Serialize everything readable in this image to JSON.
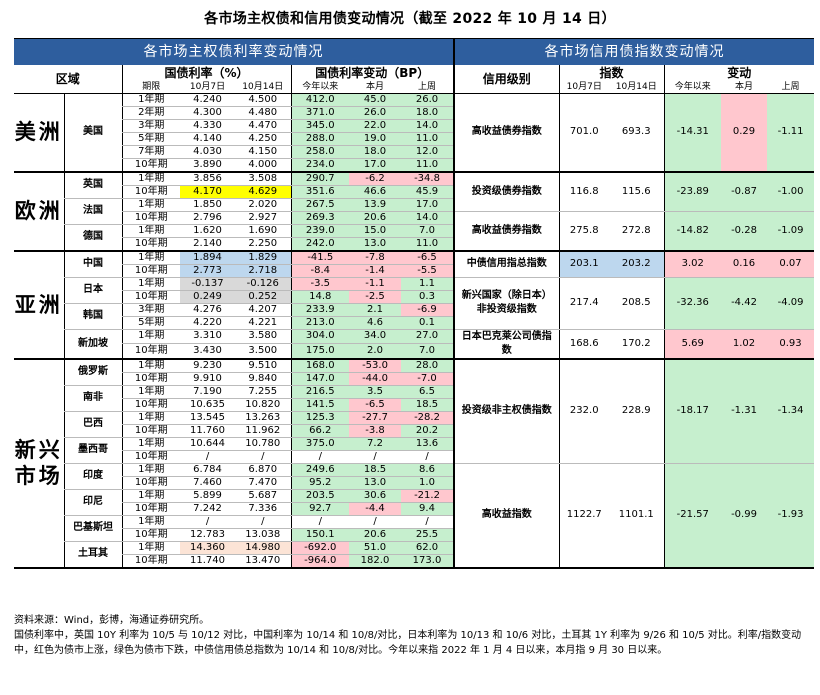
{
  "title": "各市场主权债和信用债变动情况（截至 2022 年 10 月 14 日）",
  "left_header": "各市场主权债利率变动情况",
  "right_header": "各市场信用债指数变动情况",
  "cols": {
    "region": "区域",
    "yield": "国债利率（%）",
    "yield_change": "国债利率变动（BP）",
    "tenor": "期限",
    "d1": "10月7日",
    "d2": "10月14日",
    "ytd": "今年以来",
    "mtd": "本月",
    "wow": "上周",
    "credit_level": "信用级别",
    "index": "指数",
    "change": "变动"
  },
  "regions": {
    "americas": "美洲",
    "europe": "欧洲",
    "asia": "亚洲",
    "emerging": "新兴市场"
  },
  "countries": {
    "us": "美国",
    "uk": "英国",
    "fr": "法国",
    "de": "德国",
    "cn": "中国",
    "jp": "日本",
    "kr": "韩国",
    "sg": "新加坡",
    "ru": "俄罗斯",
    "za": "南非",
    "br": "巴西",
    "mx": "墨西哥",
    "in": "印度",
    "id": "印尼",
    "pk": "巴基斯坦",
    "tr": "土耳其"
  },
  "tenors": [
    "1年期",
    "2年期",
    "3年期",
    "5年期",
    "7年期",
    "10年期"
  ],
  "sov": [
    [
      "1年期",
      "4.240",
      "4.500",
      "412.0",
      "45.0",
      "26.0"
    ],
    [
      "2年期",
      "4.300",
      "4.480",
      "371.0",
      "26.0",
      "18.0"
    ],
    [
      "3年期",
      "4.330",
      "4.470",
      "345.0",
      "22.0",
      "14.0"
    ],
    [
      "5年期",
      "4.140",
      "4.250",
      "288.0",
      "19.0",
      "11.0"
    ],
    [
      "7年期",
      "4.030",
      "4.150",
      "258.0",
      "18.0",
      "12.0"
    ],
    [
      "10年期",
      "3.890",
      "4.000",
      "234.0",
      "17.0",
      "11.0"
    ],
    [
      "1年期",
      "3.856",
      "3.508",
      "290.7",
      "-6.2",
      "-34.8"
    ],
    [
      "10年期",
      "4.170",
      "4.629",
      "351.6",
      "46.6",
      "45.9"
    ],
    [
      "1年期",
      "1.850",
      "2.020",
      "267.5",
      "13.9",
      "17.0"
    ],
    [
      "10年期",
      "2.796",
      "2.927",
      "269.3",
      "20.6",
      "14.0"
    ],
    [
      "1年期",
      "1.620",
      "1.690",
      "239.0",
      "15.0",
      "7.0"
    ],
    [
      "10年期",
      "2.140",
      "2.250",
      "242.0",
      "13.0",
      "11.0"
    ],
    [
      "1年期",
      "1.894",
      "1.829",
      "-41.5",
      "-7.8",
      "-6.5"
    ],
    [
      "10年期",
      "2.773",
      "2.718",
      "-8.4",
      "-1.4",
      "-5.5"
    ],
    [
      "1年期",
      "-0.137",
      "-0.126",
      "-3.5",
      "-1.1",
      "1.1"
    ],
    [
      "10年期",
      "0.249",
      "0.252",
      "14.8",
      "-2.5",
      "0.3"
    ],
    [
      "3年期",
      "4.276",
      "4.207",
      "233.9",
      "2.1",
      "-6.9"
    ],
    [
      "5年期",
      "4.220",
      "4.221",
      "213.0",
      "4.6",
      "0.1"
    ],
    [
      "1年期",
      "3.310",
      "3.580",
      "304.0",
      "34.0",
      "27.0"
    ],
    [
      "10年期",
      "3.430",
      "3.500",
      "175.0",
      "2.0",
      "7.0"
    ],
    [
      "1年期",
      "9.230",
      "9.510",
      "168.0",
      "-53.0",
      "28.0"
    ],
    [
      "10年期",
      "9.910",
      "9.840",
      "147.0",
      "-44.0",
      "-7.0"
    ],
    [
      "1年期",
      "7.190",
      "7.255",
      "216.5",
      "3.5",
      "6.5"
    ],
    [
      "10年期",
      "10.635",
      "10.820",
      "141.5",
      "-6.5",
      "18.5"
    ],
    [
      "1年期",
      "13.545",
      "13.263",
      "125.3",
      "-27.7",
      "-28.2"
    ],
    [
      "10年期",
      "11.760",
      "11.962",
      "66.2",
      "-3.8",
      "20.2"
    ],
    [
      "1年期",
      "10.644",
      "10.780",
      "375.0",
      "7.2",
      "13.6"
    ],
    [
      "10年期",
      "/",
      "/",
      "/",
      "/",
      "/"
    ],
    [
      "1年期",
      "6.784",
      "6.870",
      "249.6",
      "18.5",
      "8.6"
    ],
    [
      "10年期",
      "7.460",
      "7.470",
      "95.2",
      "13.0",
      "1.0"
    ],
    [
      "1年期",
      "5.899",
      "5.687",
      "203.5",
      "30.6",
      "-21.2"
    ],
    [
      "10年期",
      "7.242",
      "7.336",
      "92.7",
      "-4.4",
      "9.4"
    ],
    [
      "1年期",
      "/",
      "/",
      "/",
      "/",
      "/"
    ],
    [
      "10年期",
      "12.783",
      "13.038",
      "150.1",
      "20.6",
      "25.5"
    ],
    [
      "1年期",
      "14.360",
      "14.980",
      "-692.0",
      "51.0",
      "62.0"
    ],
    [
      "10年期",
      "11.740",
      "13.470",
      "-964.0",
      "182.0",
      "173.0"
    ]
  ],
  "credit": [
    {
      "name": "高收益债券指数",
      "d1": "701.0",
      "d2": "693.3",
      "ytd": "-14.31",
      "mtd": "0.29",
      "wow": "-1.11"
    },
    {
      "name": "投资级债券指数",
      "d1": "116.8",
      "d2": "115.6",
      "ytd": "-23.89",
      "mtd": "-0.87",
      "wow": "-1.00"
    },
    {
      "name": "高收益债券指数",
      "d1": "275.8",
      "d2": "272.8",
      "ytd": "-14.82",
      "mtd": "-0.28",
      "wow": "-1.09"
    },
    {
      "name": "中债信用指总指数",
      "d1": "203.1",
      "d2": "203.2",
      "ytd": "3.02",
      "mtd": "0.16",
      "wow": "0.07"
    },
    {
      "name": "新兴国家（除日本）非投资级指数",
      "d1": "217.4",
      "d2": "208.5",
      "ytd": "-32.36",
      "mtd": "-4.42",
      "wow": "-4.09"
    },
    {
      "name": "日本巴克莱公司债指数",
      "d1": "168.6",
      "d2": "170.2",
      "ytd": "5.69",
      "mtd": "1.02",
      "wow": "0.93"
    },
    {
      "name": "投资级非主权债指数",
      "d1": "232.0",
      "d2": "228.9",
      "ytd": "-18.17",
      "mtd": "-1.31",
      "wow": "-1.34"
    },
    {
      "name": "高收益指数",
      "d1": "1122.7",
      "d2": "1101.1",
      "ytd": "-21.57",
      "mtd": "-0.99",
      "wow": "-1.93"
    }
  ],
  "notes": [
    "资料来源：Wind，彭博，海通证券研究所。",
    "国债利率中，英国 10Y 利率为 10/5 与 10/12 对比，中国利率为 10/14 和 10/8/对比，日本利率为 10/13 和 10/6 对比，土耳其 1Y 利率为 9/26 和 10/5 对比。利率/指数变动中，红色为债市上涨，绿色为债市下跌，中债信用债总指数为 10/14 和 10/8/对比。今年以来指 2022 年 1 月 4 日以来，本月指 9 月 30 日以来。"
  ],
  "colors": {
    "header_blue": "#2E5E9E",
    "green": "#C6EFCE",
    "red": "#FFC7CE",
    "blue": "#BDD7EE",
    "gray": "#D9D9D9",
    "yellow": "#FFFF00",
    "orange": "#FCE4D6"
  }
}
